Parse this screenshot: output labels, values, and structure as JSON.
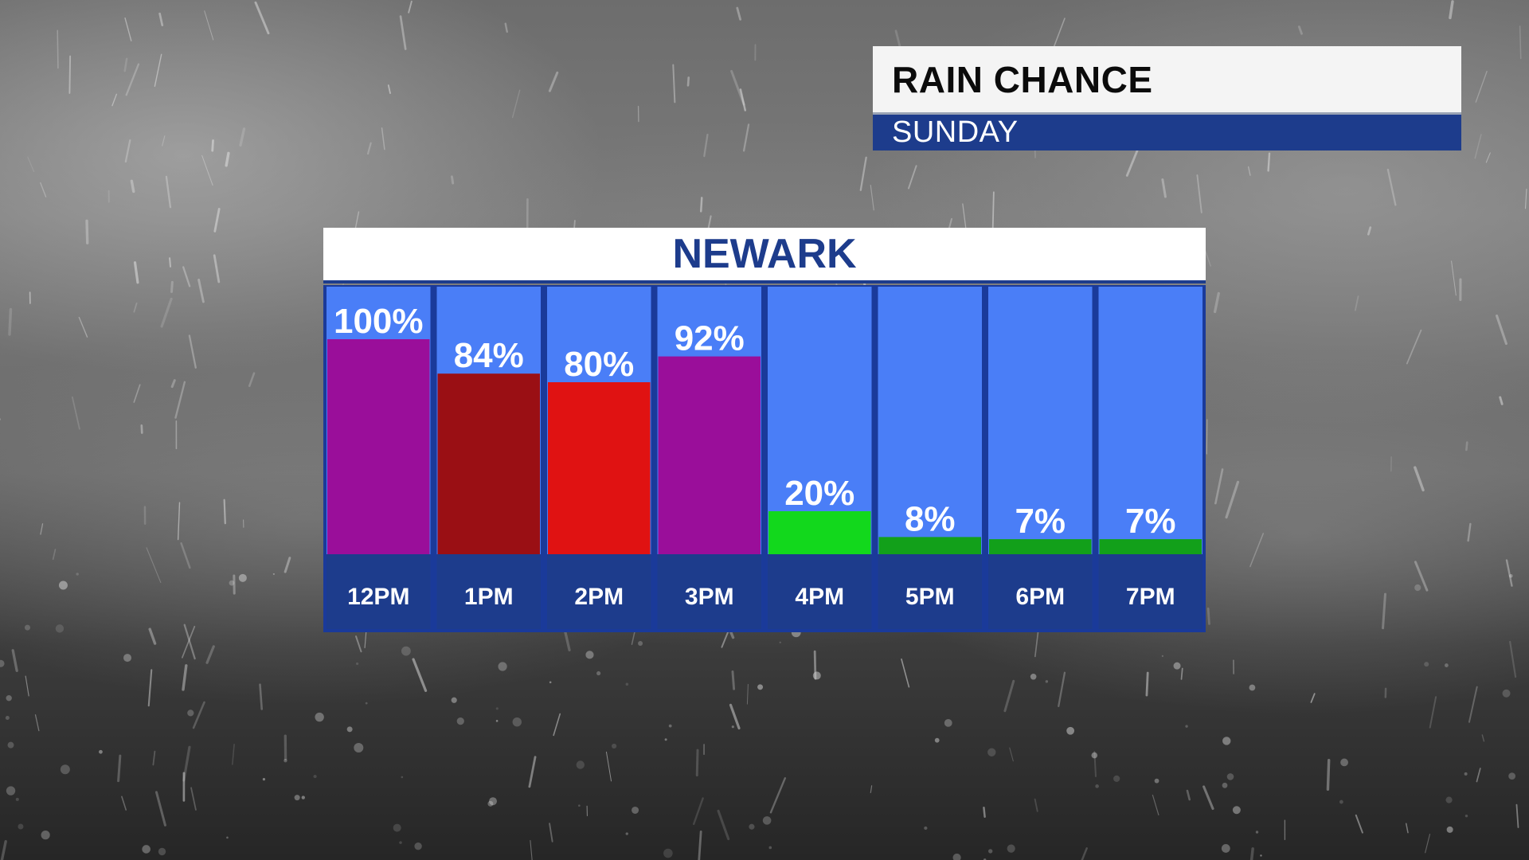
{
  "header": {
    "title": "RAIN CHANCE",
    "subtitle": "SUNDAY"
  },
  "location": "NEWARK",
  "colors": {
    "column_bg": "#4a7ef7",
    "column_border": "#1a3a9a",
    "label_band": "#1d3c8c",
    "header_band": "#1d3c8c",
    "location_text": "#1d3c8c"
  },
  "chart_data": {
    "type": "bar",
    "title": "RAIN CHANCE",
    "subtitle": "SUNDAY",
    "location": "NEWARK",
    "categories": [
      "12PM",
      "1PM",
      "2PM",
      "3PM",
      "4PM",
      "5PM",
      "6PM",
      "7PM"
    ],
    "values": [
      100,
      84,
      80,
      92,
      20,
      8,
      7,
      7
    ],
    "value_labels": [
      "100%",
      "84%",
      "80%",
      "92%",
      "20%",
      "8%",
      "7%",
      "7%"
    ],
    "bar_colors": [
      "#9a0e9a",
      "#9a0f14",
      "#e01212",
      "#9a0e9a",
      "#12d81c",
      "#12a01a",
      "#12a01a",
      "#12a01a"
    ],
    "ylim": [
      0,
      100
    ],
    "grid": false,
    "legend": "none"
  }
}
